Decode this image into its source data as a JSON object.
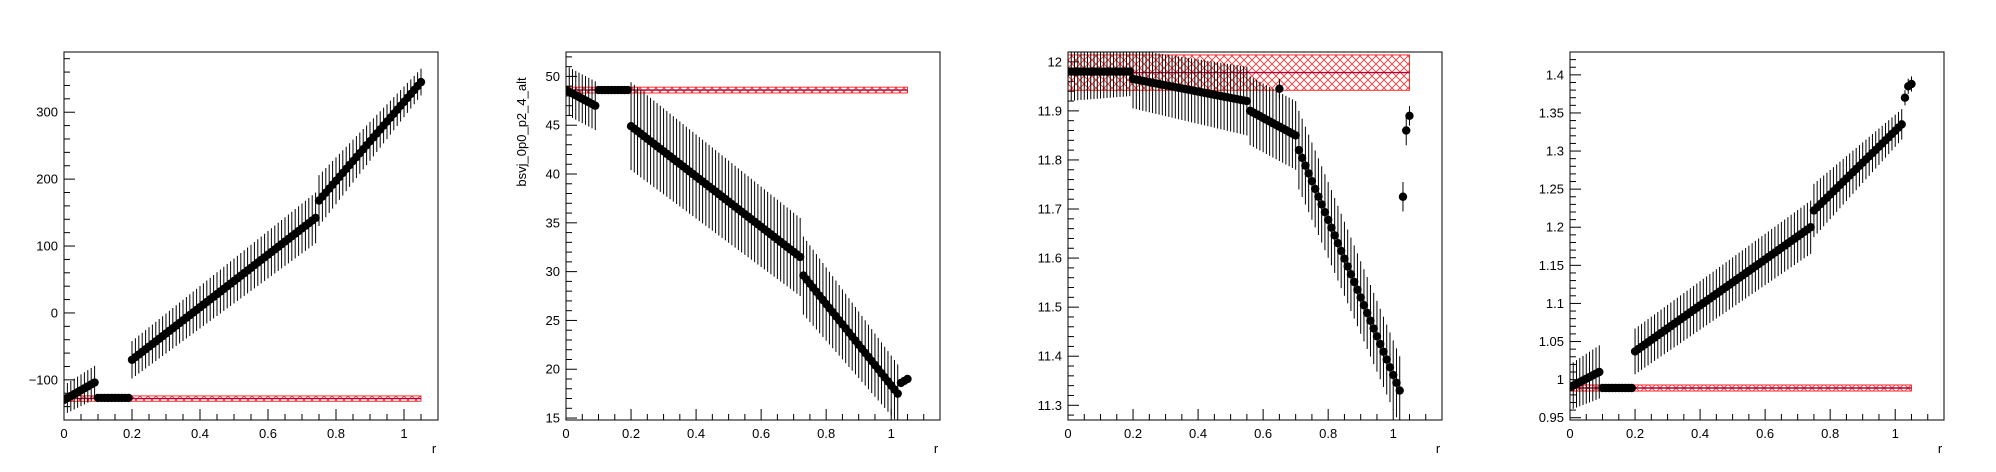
{
  "colors": {
    "points": "#000000",
    "band_edge": "#ff0000",
    "band_hatch": "#ff3333",
    "center_line": "#b0003a",
    "axis": "#000000"
  },
  "chart_data": [
    {
      "type": "scatter",
      "xlabel": "r",
      "ylabel": "",
      "xlim": [
        0,
        1.1
      ],
      "ylim": [
        -160,
        390
      ],
      "xticks": [
        "0",
        "0.2",
        "0.4",
        "0.6",
        "0.8",
        "1"
      ],
      "yticks": [
        "−100",
        "0",
        "100",
        "200",
        "300"
      ],
      "ytick_values": [
        -100,
        0,
        100,
        200,
        300
      ],
      "reference_band": {
        "center": -128,
        "low": -132,
        "high": -124,
        "x_range": [
          0,
          1.05
        ]
      },
      "segments": [
        {
          "x0": 0.0,
          "x1": 0.09,
          "y0": -130,
          "y1": -104,
          "n": 10,
          "err0": 22,
          "err1": 25
        },
        {
          "x0": 0.1,
          "x1": 0.19,
          "y0": -127,
          "y1": -127,
          "n": 10,
          "err0": 2,
          "err1": 2
        },
        {
          "x0": 0.2,
          "x1": 0.74,
          "y0": -70,
          "y1": 142,
          "n": 55,
          "err0": 28,
          "err1": 38
        },
        {
          "x0": 0.75,
          "x1": 1.05,
          "y0": 168,
          "y1": 345,
          "n": 31,
          "err0": 38,
          "err1": 20
        }
      ]
    },
    {
      "type": "scatter",
      "xlabel": "r",
      "ylabel": "bsvj_0p0_p2_4_alt",
      "xlim": [
        0,
        1.15
      ],
      "ylim": [
        14.8,
        52.5
      ],
      "xticks": [
        "0",
        "0.2",
        "0.4",
        "0.6",
        "0.8",
        "1"
      ],
      "yticks": [
        "15",
        "20",
        "25",
        "30",
        "35",
        "40",
        "45",
        "50"
      ],
      "ytick_values": [
        15,
        20,
        25,
        30,
        35,
        40,
        45,
        50
      ],
      "reference_band": {
        "center": 48.6,
        "low": 48.3,
        "high": 48.9,
        "x_range": [
          0,
          1.05
        ]
      },
      "segments": [
        {
          "x0": 0.0,
          "x1": 0.09,
          "y0": 48.6,
          "y1": 47.0,
          "n": 10,
          "err0": 2.5,
          "err1": 2.5
        },
        {
          "x0": 0.1,
          "x1": 0.19,
          "y0": 48.6,
          "y1": 48.6,
          "n": 10,
          "err0": 0.2,
          "err1": 0.2
        },
        {
          "x0": 0.2,
          "x1": 0.72,
          "y0": 44.9,
          "y1": 31.5,
          "n": 53,
          "err0": 4.5,
          "err1": 4.0
        },
        {
          "x0": 0.73,
          "x1": 1.02,
          "y0": 29.6,
          "y1": 17.5,
          "n": 30,
          "err0": 4.0,
          "err1": 3.0
        },
        {
          "x0": 1.03,
          "x1": 1.05,
          "y0": 18.6,
          "y1": 19.0,
          "n": 3,
          "err0": 0.3,
          "err1": 0.3
        }
      ]
    },
    {
      "type": "scatter",
      "xlabel": "r",
      "ylabel": "",
      "xlim": [
        0,
        1.15
      ],
      "ylim": [
        11.27,
        12.02
      ],
      "xticks": [
        "0",
        "0.2",
        "0.4",
        "0.6",
        "0.8",
        "1"
      ],
      "yticks": [
        "11.3",
        "11.4",
        "11.5",
        "11.6",
        "11.7",
        "11.8",
        "11.9",
        "12"
      ],
      "ytick_values": [
        11.3,
        11.4,
        11.5,
        11.6,
        11.7,
        11.8,
        11.9,
        12.0
      ],
      "reference_band": {
        "center": 11.978,
        "low": 11.94,
        "high": 12.012,
        "x_range": [
          0,
          1.05
        ]
      },
      "segments": [
        {
          "x0": 0.0,
          "x1": 0.19,
          "y0": 11.98,
          "y1": 11.98,
          "n": 20,
          "err0": 0.06,
          "err1": 0.05
        },
        {
          "x0": 0.2,
          "x1": 0.55,
          "y0": 11.965,
          "y1": 11.92,
          "n": 36,
          "err0": 0.06,
          "err1": 0.07
        },
        {
          "x0": 0.56,
          "x1": 0.7,
          "y0": 11.9,
          "y1": 11.85,
          "n": 15,
          "err0": 0.07,
          "err1": 0.07
        },
        {
          "x0": 0.71,
          "x1": 1.02,
          "y0": 11.82,
          "y1": 11.33,
          "n": 32,
          "err0": 0.08,
          "err1": 0.07
        }
      ],
      "extra_points": [
        {
          "x": 0.65,
          "y": 11.945,
          "err": 0.02
        },
        {
          "x": 1.03,
          "y": 11.725,
          "err": 0.03
        },
        {
          "x": 1.04,
          "y": 11.86,
          "err": 0.03
        },
        {
          "x": 1.05,
          "y": 11.89,
          "err": 0.02
        }
      ]
    },
    {
      "type": "scatter",
      "xlabel": "r",
      "ylabel": "",
      "xlim": [
        0,
        1.15
      ],
      "ylim": [
        0.947,
        1.43
      ],
      "xticks": [
        "0",
        "0.2",
        "0.4",
        "0.6",
        "0.8",
        "1"
      ],
      "yticks": [
        "0.95",
        "1",
        "1.05",
        "1.1",
        "1.15",
        "1.2",
        "1.25",
        "1.3",
        "1.35",
        "1.4"
      ],
      "ytick_values": [
        0.95,
        1.0,
        1.05,
        1.1,
        1.15,
        1.2,
        1.25,
        1.3,
        1.35,
        1.4
      ],
      "reference_band": {
        "center": 0.989,
        "low": 0.985,
        "high": 0.993,
        "x_range": [
          0,
          1.05
        ]
      },
      "segments": [
        {
          "x0": 0.0,
          "x1": 0.09,
          "y0": 0.99,
          "y1": 1.01,
          "n": 10,
          "err0": 0.03,
          "err1": 0.035
        },
        {
          "x0": 0.1,
          "x1": 0.19,
          "y0": 0.989,
          "y1": 0.989,
          "n": 10,
          "err0": 0.003,
          "err1": 0.003
        },
        {
          "x0": 0.2,
          "x1": 0.74,
          "y0": 1.037,
          "y1": 1.2,
          "n": 55,
          "err0": 0.03,
          "err1": 0.035
        },
        {
          "x0": 0.75,
          "x1": 1.02,
          "y0": 1.222,
          "y1": 1.335,
          "n": 28,
          "err0": 0.035,
          "err1": 0.02
        }
      ],
      "extra_points": [
        {
          "x": 1.03,
          "y": 1.37,
          "err": 0.01
        },
        {
          "x": 1.04,
          "y": 1.385,
          "err": 0.01
        },
        {
          "x": 1.05,
          "y": 1.388,
          "err": 0.01
        }
      ]
    }
  ]
}
